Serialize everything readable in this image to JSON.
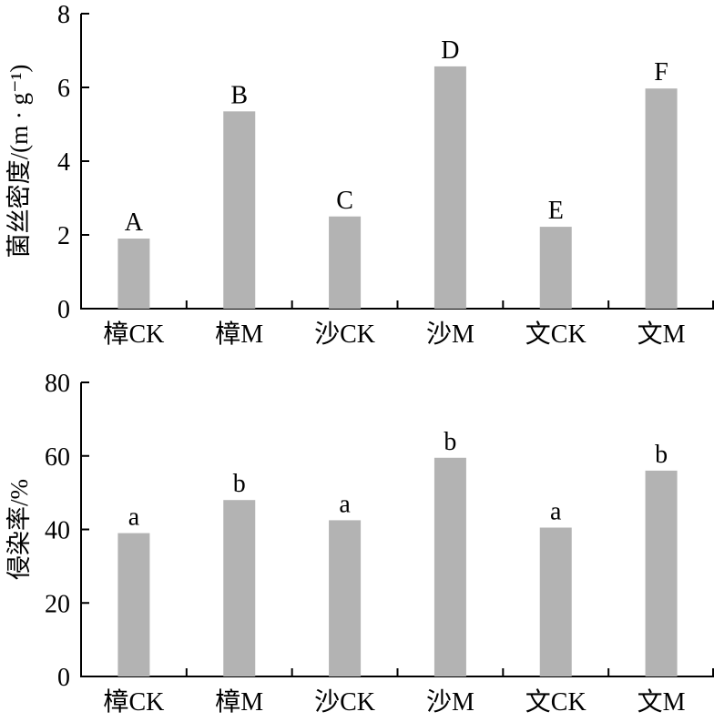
{
  "chart_data": [
    {
      "type": "bar",
      "categories": [
        "樟CK",
        "樟M",
        "沙CK",
        "沙M",
        "文CK",
        "文M"
      ],
      "values": [
        1.9,
        5.35,
        2.5,
        6.57,
        2.22,
        5.97
      ],
      "bar_labels": [
        "A",
        "B",
        "C",
        "D",
        "E",
        "F"
      ],
      "title": "",
      "xlabel": "",
      "ylabel": "菌丝密度/(m · g⁻¹)",
      "ylim": [
        0,
        8
      ],
      "yticks": [
        "0",
        "2",
        "4",
        "6",
        "8"
      ],
      "bar_color": "#b3b3b3",
      "grid": false
    },
    {
      "type": "bar",
      "categories": [
        "樟CK",
        "樟M",
        "沙CK",
        "沙M",
        "文CK",
        "文M"
      ],
      "values": [
        39,
        48,
        42.5,
        59.5,
        40.5,
        56
      ],
      "bar_labels": [
        "a",
        "b",
        "a",
        "b",
        "a",
        "b"
      ],
      "title": "",
      "xlabel": "",
      "ylabel": "侵染率/%",
      "ylim": [
        0,
        80
      ],
      "yticks": [
        "0",
        "20",
        "40",
        "60",
        "80"
      ],
      "bar_color": "#b3b3b3",
      "grid": false
    }
  ]
}
